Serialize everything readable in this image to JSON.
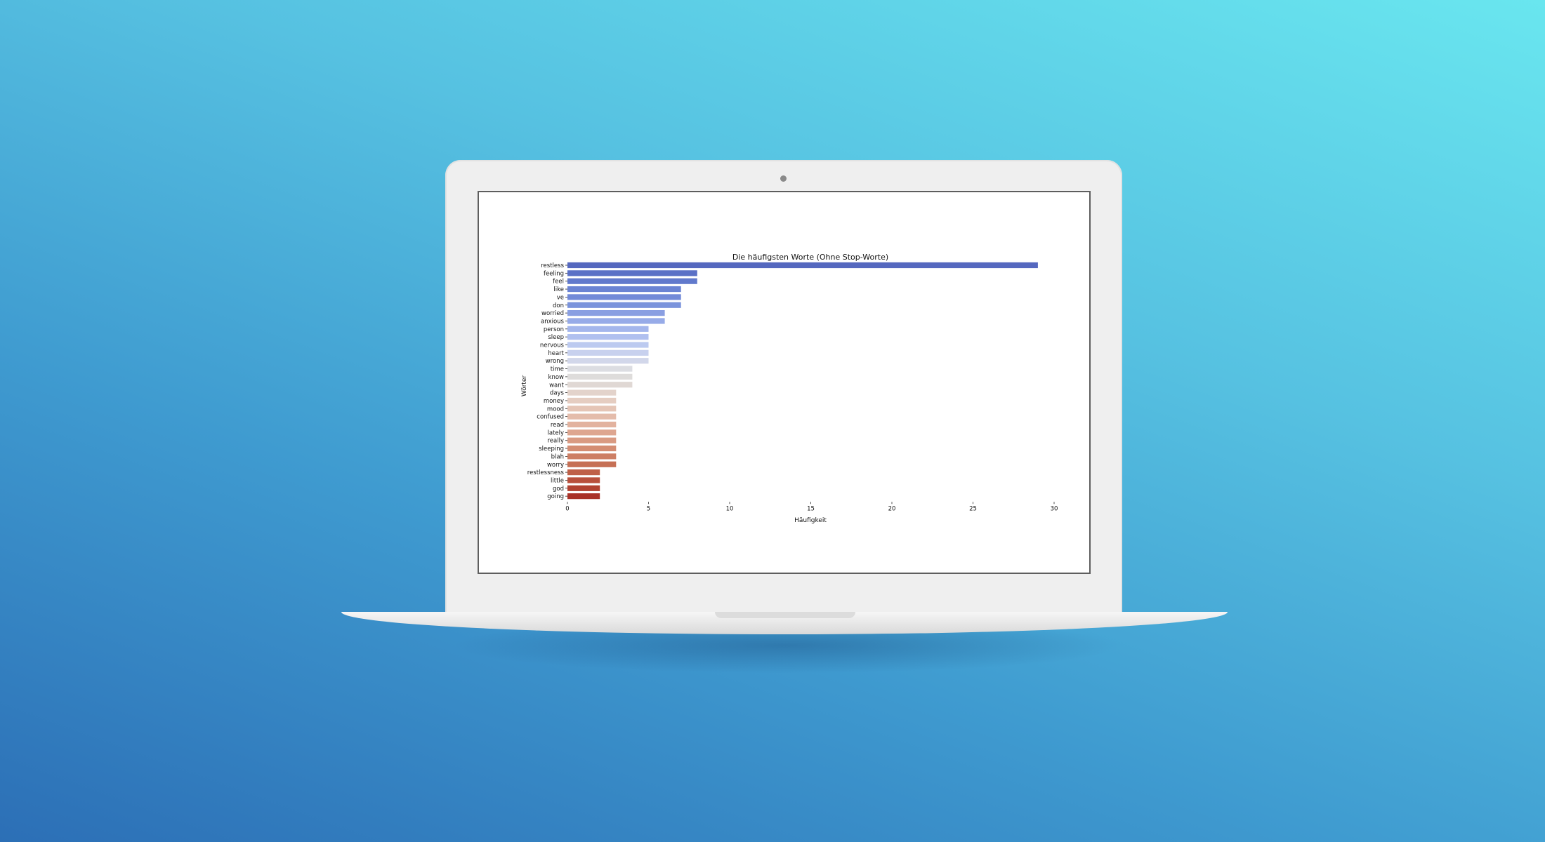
{
  "chart_data": {
    "type": "bar",
    "orientation": "horizontal",
    "title": "Die häufigsten Worte (Ohne Stop-Worte)",
    "xlabel": "Häufigkeit",
    "ylabel": "Wörter",
    "xlim": [
      0,
      30
    ],
    "xticks": [
      0,
      5,
      10,
      15,
      20,
      25,
      30
    ],
    "grid": false,
    "categories": [
      "restless",
      "feeling",
      "feel",
      "like",
      "ve",
      "don",
      "worried",
      "anxious",
      "person",
      "sleep",
      "nervous",
      "heart",
      "wrong",
      "time",
      "know",
      "want",
      "days",
      "money",
      "mood",
      "confused",
      "read",
      "lately",
      "really",
      "sleeping",
      "blah",
      "worry",
      "restlessness",
      "little",
      "god",
      "going"
    ],
    "values": [
      29,
      8,
      8,
      7,
      7,
      7,
      6,
      6,
      5,
      5,
      5,
      5,
      5,
      4,
      4,
      4,
      3,
      3,
      3,
      3,
      3,
      3,
      3,
      3,
      3,
      3,
      2,
      2,
      2,
      2
    ],
    "colors": [
      "#5568bf",
      "#5a70c6",
      "#6179cc",
      "#6a83d3",
      "#728ad8",
      "#7a93dc",
      "#8a9fe2",
      "#97abe8",
      "#a4b6ec",
      "#b0c0ef",
      "#bccaf0",
      "#c8d1ee",
      "#d2d7ea",
      "#dcdde2",
      "#dedcdb",
      "#e0d8d4",
      "#e3d3cb",
      "#e5cdc1",
      "#e5c5b6",
      "#e4bcab",
      "#e2b29e",
      "#dea690",
      "#d99a82",
      "#d48d73",
      "#cd7e64",
      "#c67055",
      "#bf6048",
      "#b8503c",
      "#b14231",
      "#a93127"
    ]
  }
}
